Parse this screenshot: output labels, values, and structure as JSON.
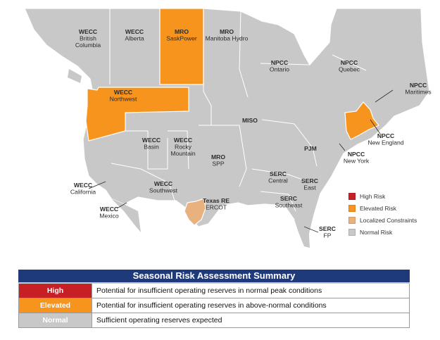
{
  "colors": {
    "high": "#c62026",
    "elevated": "#f7941e",
    "localized": "#e8b17d",
    "normal": "#c8c8c8",
    "ocean": "#ffffff",
    "title_bar": "#1f3a7a"
  },
  "regions": [
    {
      "id": "wecc-bc",
      "lines": [
        "WECC",
        "British",
        "Columbia"
      ],
      "risk": "normal"
    },
    {
      "id": "wecc-ab",
      "lines": [
        "WECC",
        "Alberta"
      ],
      "risk": "normal"
    },
    {
      "id": "mro-sask",
      "lines": [
        "MRO",
        "SaskPower"
      ],
      "risk": "elevated"
    },
    {
      "id": "mro-mb",
      "lines": [
        "MRO",
        "Manitoba Hydro"
      ],
      "risk": "normal"
    },
    {
      "id": "npcc-on",
      "lines": [
        "NPCC",
        "Ontario"
      ],
      "risk": "normal"
    },
    {
      "id": "npcc-qc",
      "lines": [
        "NPCC",
        "Quebec"
      ],
      "risk": "normal"
    },
    {
      "id": "npcc-mar",
      "lines": [
        "NPCC",
        "Maritimes"
      ],
      "risk": "normal"
    },
    {
      "id": "wecc-nw",
      "lines": [
        "WECC",
        "Northwest"
      ],
      "risk": "elevated"
    },
    {
      "id": "miso",
      "lines": [
        "MISO"
      ],
      "risk": "normal"
    },
    {
      "id": "npcc-ne",
      "lines": [
        "NPCC",
        "New England"
      ],
      "risk": "elevated"
    },
    {
      "id": "wecc-basin",
      "lines": [
        "WECC",
        "Basin"
      ],
      "risk": "normal"
    },
    {
      "id": "wecc-rm",
      "lines": [
        "WECC",
        "Rocky",
        "Mountain"
      ],
      "risk": "normal"
    },
    {
      "id": "mro-spp",
      "lines": [
        "MRO",
        "SPP"
      ],
      "risk": "normal"
    },
    {
      "id": "pjm",
      "lines": [
        "PJM"
      ],
      "risk": "normal"
    },
    {
      "id": "npcc-ny",
      "lines": [
        "NPCC",
        "New York"
      ],
      "risk": "normal"
    },
    {
      "id": "wecc-ca",
      "lines": [
        "WECC",
        "California"
      ],
      "risk": "normal"
    },
    {
      "id": "wecc-sw",
      "lines": [
        "WECC",
        "Southwest"
      ],
      "risk": "normal"
    },
    {
      "id": "serc-c",
      "lines": [
        "SERC",
        "Central"
      ],
      "risk": "normal"
    },
    {
      "id": "serc-e",
      "lines": [
        "SERC",
        "East"
      ],
      "risk": "normal"
    },
    {
      "id": "texas",
      "lines": [
        "Texas RE",
        "ERCOT"
      ],
      "risk": "localized"
    },
    {
      "id": "serc-se",
      "lines": [
        "SERC",
        "Southeast"
      ],
      "risk": "normal"
    },
    {
      "id": "wecc-mx",
      "lines": [
        "WECC",
        "Mexico"
      ],
      "risk": "normal"
    },
    {
      "id": "serc-fp",
      "lines": [
        "SERC",
        "FP"
      ],
      "risk": "normal"
    }
  ],
  "legend": [
    {
      "key": "high",
      "label": "High Risk"
    },
    {
      "key": "elevated",
      "label": "Elevated Risk"
    },
    {
      "key": "localized",
      "label": "Localized Constraints"
    },
    {
      "key": "normal",
      "label": "Normal Risk"
    }
  ],
  "summary": {
    "title": "Seasonal Risk Assessment Summary",
    "rows": [
      {
        "level": "High",
        "color_key": "high",
        "description": "Potential for insufficient operating reserves in normal peak conditions"
      },
      {
        "level": "Elevated",
        "color_key": "elevated",
        "description": "Potential for insufficient operating reserves in above-normal conditions"
      },
      {
        "level": "Normal",
        "color_key": "normal",
        "description": "Sufficient operating reserves expected"
      }
    ]
  }
}
